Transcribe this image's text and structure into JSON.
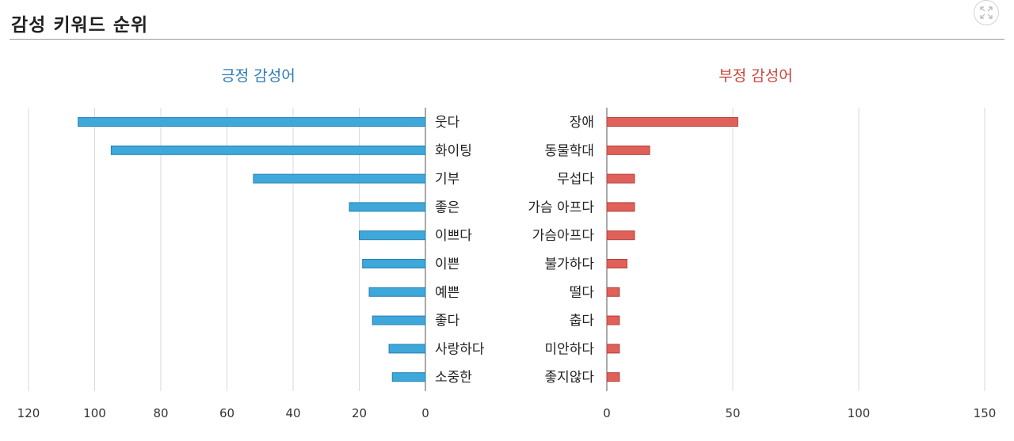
{
  "header": {
    "title": "감성 키워드 순위",
    "expand_icon": "expand-icon"
  },
  "colors": {
    "positive": "#3ea8db",
    "positive_stroke": "#2a7fb0",
    "positive_title": "#2b7ab0",
    "negative": "#e0605a",
    "negative_stroke": "#b0413b",
    "negative_title": "#c8453e",
    "grid": "#d8d8d8",
    "axis": "#555555"
  },
  "chart_data": [
    {
      "type": "bar",
      "orientation": "horizontal",
      "direction": "reversed",
      "title": "긍정 감성어",
      "categories": [
        "웃다",
        "화이팅",
        "기부",
        "좋은",
        "이쁘다",
        "이쁜",
        "예쁜",
        "좋다",
        "사랑하다",
        "소중한"
      ],
      "values": [
        105,
        95,
        52,
        23,
        20,
        19,
        17,
        16,
        11,
        10
      ],
      "xlim": [
        0,
        120
      ],
      "xticks": [
        0,
        20,
        40,
        60,
        80,
        100,
        120
      ],
      "grid": true
    },
    {
      "type": "bar",
      "orientation": "horizontal",
      "title": "부정 감성어",
      "categories": [
        "장애",
        "동물학대",
        "무섭다",
        "가슴 아프다",
        "가슴아프다",
        "불가하다",
        "떨다",
        "춥다",
        "미안하다",
        "좋지않다"
      ],
      "values": [
        52,
        17,
        11,
        11,
        11,
        8,
        5,
        5,
        5,
        5
      ],
      "xlim": [
        0,
        150
      ],
      "xticks": [
        0,
        50,
        100,
        150
      ],
      "grid": true
    }
  ]
}
